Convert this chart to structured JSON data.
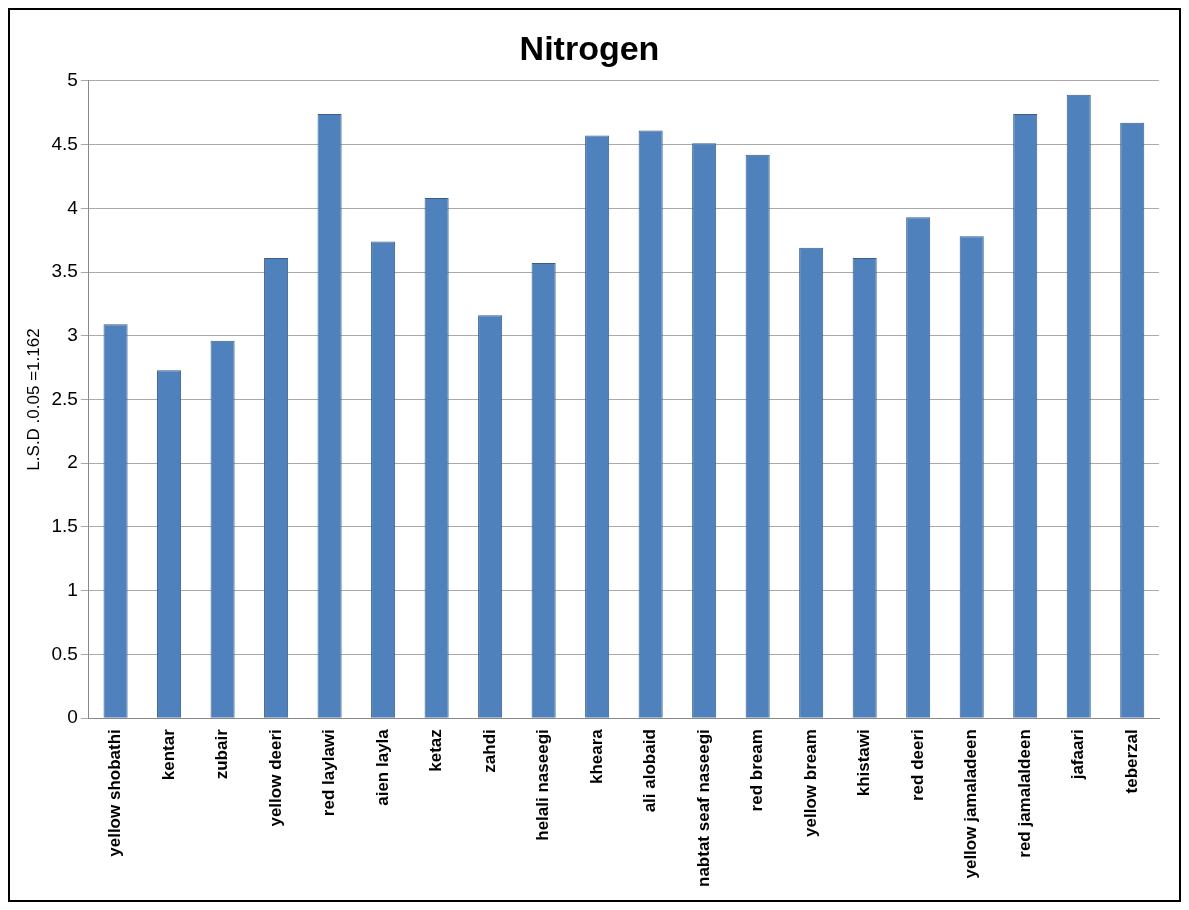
{
  "chart_data": {
    "type": "bar",
    "title": "Nitrogen",
    "ylabel": "L.S.D .0.05 =1.162",
    "categories": [
      "yellow shobathi",
      "kentar",
      "zubair",
      "yellow deeri",
      "red laylawi",
      "aien layla",
      "ketaz",
      "zahdi",
      "helali naseegi",
      "kheara",
      "ali alobaid",
      "nabtat seaf naseegi",
      "red bream",
      "yellow bream",
      "khistawi",
      "red deeri",
      "yellow jamaladeen",
      "red jamalaldeen",
      "jafaari",
      "teberzal"
    ],
    "values": [
      3.09,
      2.73,
      2.96,
      3.61,
      4.74,
      3.74,
      4.08,
      3.16,
      3.57,
      4.57,
      4.61,
      4.51,
      4.42,
      3.69,
      3.61,
      3.93,
      3.78,
      4.74,
      4.89,
      4.67
    ],
    "color": "#4f81bd",
    "ylim": [
      0,
      5
    ],
    "yticks": [
      0,
      0.5,
      1,
      1.5,
      2,
      2.5,
      3,
      3.5,
      4,
      4.5,
      5
    ],
    "grid": "y",
    "legend": false
  }
}
